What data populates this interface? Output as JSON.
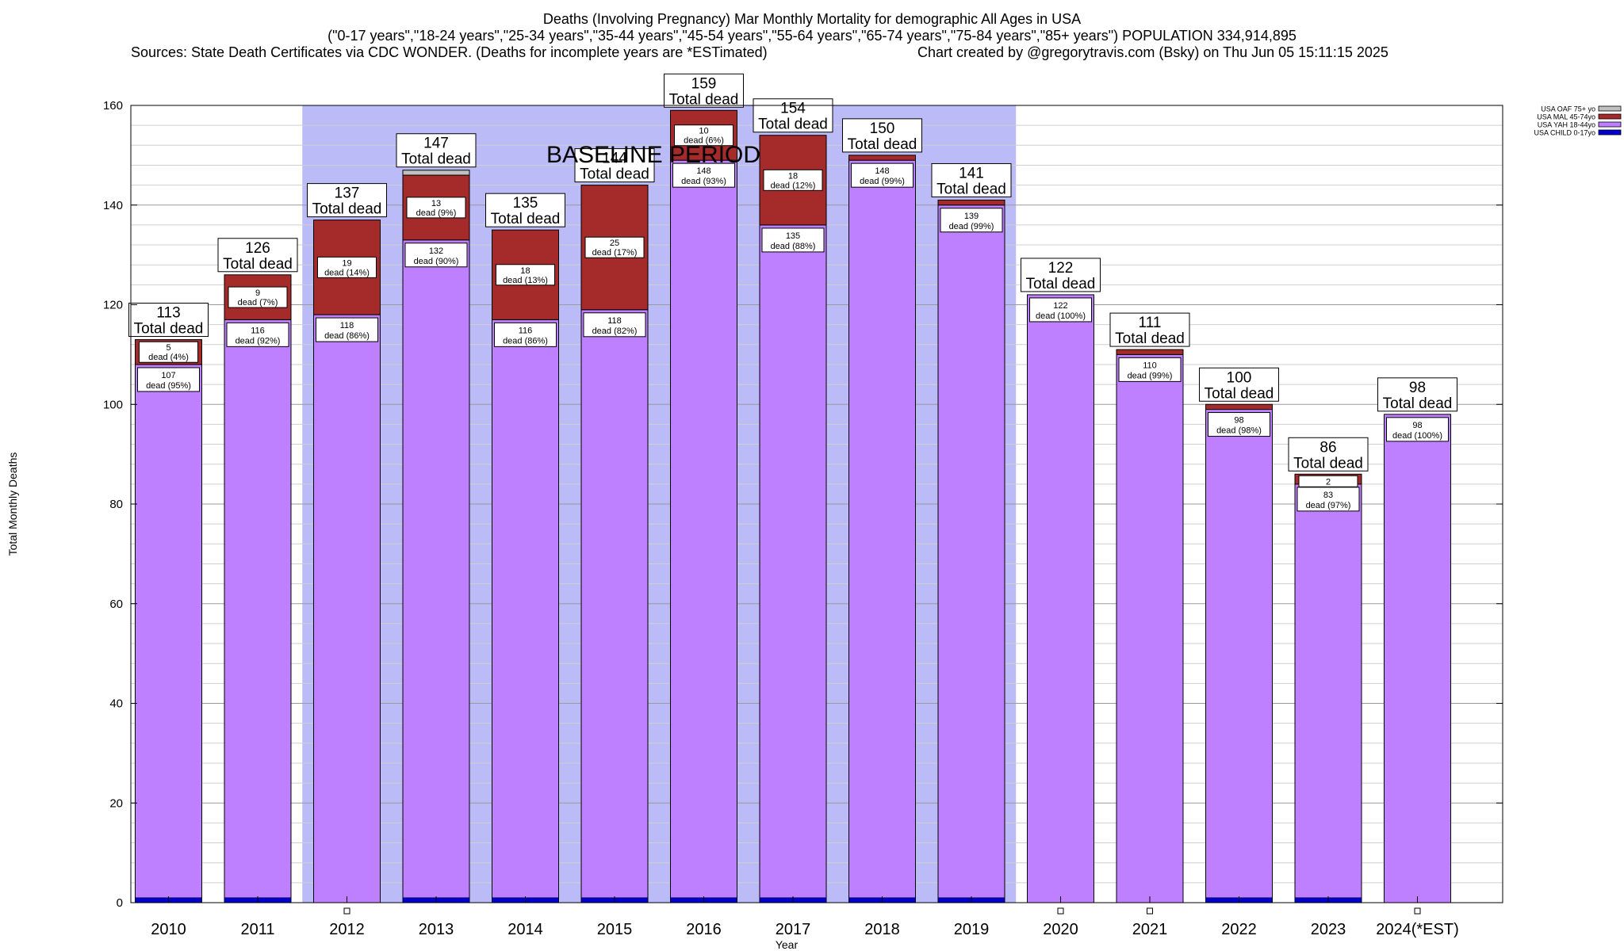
{
  "chart_data": {
    "type": "bar",
    "title_lines": [
      "Deaths (Involving Pregnancy) Mar Monthly Mortality for demographic All Ages in USA",
      "(\"0-17 years\",\"18-24 years\",\"25-34 years\",\"35-44 years\",\"45-54 years\",\"55-64 years\",\"65-74 years\",\"75-84 years\",\"85+ years\") POPULATION 334,914,895",
      "Sources: State Death Certificates via CDC WONDER. (Deaths for incomplete years are *ESTimated)"
    ],
    "credit": "Chart created by @gregorytravis.com (Bsky) on Thu Jun 05 15:11:15 2025",
    "xlabel": "Year",
    "ylabel": "Total Monthly Deaths",
    "ylim": [
      0,
      160
    ],
    "yticks": [
      0,
      20,
      40,
      60,
      80,
      100,
      120,
      140,
      160
    ],
    "grid": true,
    "legend_position": "top-right",
    "baseline_label": "BASELINE PERIOD",
    "baseline_range": [
      "2012",
      "2019"
    ],
    "total_suffix": "Total dead",
    "segment_suffix": "dead",
    "categories": [
      "2010",
      "2011",
      "2012",
      "2013",
      "2014",
      "2015",
      "2016",
      "2017",
      "2018",
      "2019",
      "2020",
      "2021",
      "2022",
      "2023",
      "2024(*EST)"
    ],
    "totals": [
      113,
      126,
      137,
      147,
      135,
      144,
      159,
      154,
      150,
      141,
      122,
      111,
      100,
      86,
      98
    ],
    "series": [
      {
        "name": "USA CHILD 0-17yo",
        "color": "#0000cc",
        "values": [
          1,
          1,
          0,
          1,
          1,
          1,
          1,
          1,
          1,
          1,
          0,
          0,
          1,
          1,
          0
        ]
      },
      {
        "name": "USA YAH 18-44yo",
        "color": "#bf80ff",
        "values": [
          107,
          116,
          118,
          132,
          116,
          118,
          148,
          135,
          148,
          139,
          122,
          110,
          98,
          83,
          98
        ],
        "labels": [
          "107",
          "116",
          "118",
          "132",
          "116",
          "118",
          "148",
          "135",
          "148",
          "139",
          "122",
          "110",
          "98",
          "83",
          "98"
        ],
        "pcts": [
          "(95%)",
          "(92%)",
          "(86%)",
          "(90%)",
          "(86%)",
          "(82%)",
          "(93%)",
          "(88%)",
          "(99%)",
          "(99%)",
          "(100%)",
          "(99%)",
          "(98%)",
          "(97%)",
          "(100%)"
        ]
      },
      {
        "name": "USA MAL 45-74yo",
        "color": "#a52a2a",
        "values": [
          5,
          9,
          19,
          13,
          18,
          25,
          10,
          18,
          1,
          1,
          0,
          1,
          1,
          2,
          0
        ],
        "labels": [
          "5",
          "9",
          "19",
          "13",
          "18",
          "25",
          "10",
          "18",
          "",
          "",
          "",
          "",
          "",
          "2",
          ""
        ],
        "pcts": [
          "(4%)",
          "(7%)",
          "(14%)",
          "(9%)",
          "(13%)",
          "(17%)",
          "(6%)",
          "(12%)",
          "",
          "",
          "",
          "",
          "",
          "",
          ""
        ]
      },
      {
        "name": "USA OAF 75+ yo",
        "color": "#c0c0c0",
        "values": [
          0,
          0,
          0,
          1,
          0,
          0,
          0,
          0,
          0,
          0,
          0,
          0,
          0,
          0,
          0
        ]
      }
    ],
    "legend_order": [
      "USA OAF 75+ yo",
      "USA MAL 45-74yo",
      "USA YAH 18-44yo",
      "USA CHILD 0-17yo"
    ]
  }
}
